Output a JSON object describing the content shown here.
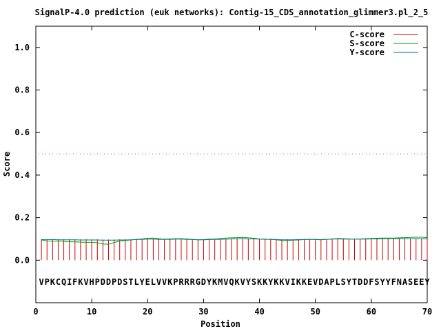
{
  "chart_data": {
    "type": "line",
    "title": "SignalP-4.0 prediction (euk networks): Contig-15_CDS_annotation_glimmer3.pl_2_5",
    "xlabel": "Position",
    "ylabel": "Score",
    "xlim": [
      0,
      70
    ],
    "ylim": [
      -0.2,
      1.1
    ],
    "x_ticks": [
      "0",
      "10",
      "20",
      "30",
      "40",
      "50",
      "60",
      "70"
    ],
    "y_ticks": [
      "0.0",
      "0.2",
      "0.4",
      "0.6",
      "0.8",
      "1.0"
    ],
    "threshold": 0.5,
    "legend_position": "top-right",
    "grid": false,
    "sequence": "VPKCQIFKVHPDDPDSTLYELVVKPRRRGDYKMVQKVYSKKYKKVIKKEVDAPLSYTDDFSYYFNASEEY",
    "series": [
      {
        "name": "C-score",
        "color": "#cc0000",
        "style": "impulses",
        "values": [
          0.099,
          0.098,
          0.099,
          0.099,
          0.098,
          0.099,
          0.098,
          0.098,
          0.099,
          0.098,
          0.098,
          0.097,
          0.097,
          0.097,
          0.098,
          0.098,
          0.097,
          0.098,
          0.097,
          0.098,
          0.099,
          0.1,
          0.099,
          0.1,
          0.099,
          0.101,
          0.102,
          0.099,
          0.097,
          0.098,
          0.098,
          0.099,
          0.098,
          0.099,
          0.1,
          0.101,
          0.102,
          0.1,
          0.101,
          0.101,
          0.1,
          0.101,
          0.099,
          0.098,
          0.099,
          0.098,
          0.099,
          0.099,
          0.1,
          0.1,
          0.099,
          0.098,
          0.1,
          0.102,
          0.101,
          0.1,
          0.1,
          0.099,
          0.099,
          0.1,
          0.101,
          0.101,
          0.1,
          0.1,
          0.101,
          0.1,
          0.101,
          0.101,
          0.1,
          0.101
        ]
      },
      {
        "name": "S-score",
        "color": "#00a000",
        "style": "line",
        "values": [
          0.095,
          0.091,
          0.089,
          0.09,
          0.088,
          0.087,
          0.086,
          0.085,
          0.084,
          0.084,
          0.082,
          0.076,
          0.075,
          0.083,
          0.09,
          0.093,
          0.095,
          0.098,
          0.1,
          0.103,
          0.104,
          0.101,
          0.099,
          0.1,
          0.101,
          0.101,
          0.1,
          0.098,
          0.096,
          0.097,
          0.099,
          0.1,
          0.102,
          0.104,
          0.105,
          0.106,
          0.107,
          0.105,
          0.103,
          0.1,
          0.099,
          0.098,
          0.096,
          0.093,
          0.092,
          0.094,
          0.095,
          0.097,
          0.098,
          0.097,
          0.096,
          0.098,
          0.1,
          0.102,
          0.101,
          0.1,
          0.099,
          0.1,
          0.101,
          0.102,
          0.103,
          0.104,
          0.104,
          0.104,
          0.105,
          0.106,
          0.107,
          0.108,
          0.108,
          0.106
        ]
      },
      {
        "name": "Y-score",
        "color": "#007090",
        "style": "line",
        "values": [
          0.097,
          0.097,
          0.097,
          0.096,
          0.096,
          0.096,
          0.096,
          0.095,
          0.095,
          0.095,
          0.095,
          0.094,
          0.094,
          0.094,
          0.095,
          0.095,
          0.096,
          0.097,
          0.098,
          0.099,
          0.099,
          0.098,
          0.098,
          0.098,
          0.099,
          0.099,
          0.098,
          0.097,
          0.096,
          0.096,
          0.097,
          0.098,
          0.098,
          0.099,
          0.1,
          0.101,
          0.101,
          0.1,
          0.1,
          0.099,
          0.098,
          0.098,
          0.097,
          0.096,
          0.096,
          0.096,
          0.097,
          0.097,
          0.098,
          0.098,
          0.097,
          0.098,
          0.099,
          0.1,
          0.099,
          0.099,
          0.099,
          0.099,
          0.099,
          0.1,
          0.1,
          0.101,
          0.101,
          0.101,
          0.101,
          0.101,
          0.101,
          0.101,
          0.101,
          0.1
        ]
      }
    ]
  }
}
